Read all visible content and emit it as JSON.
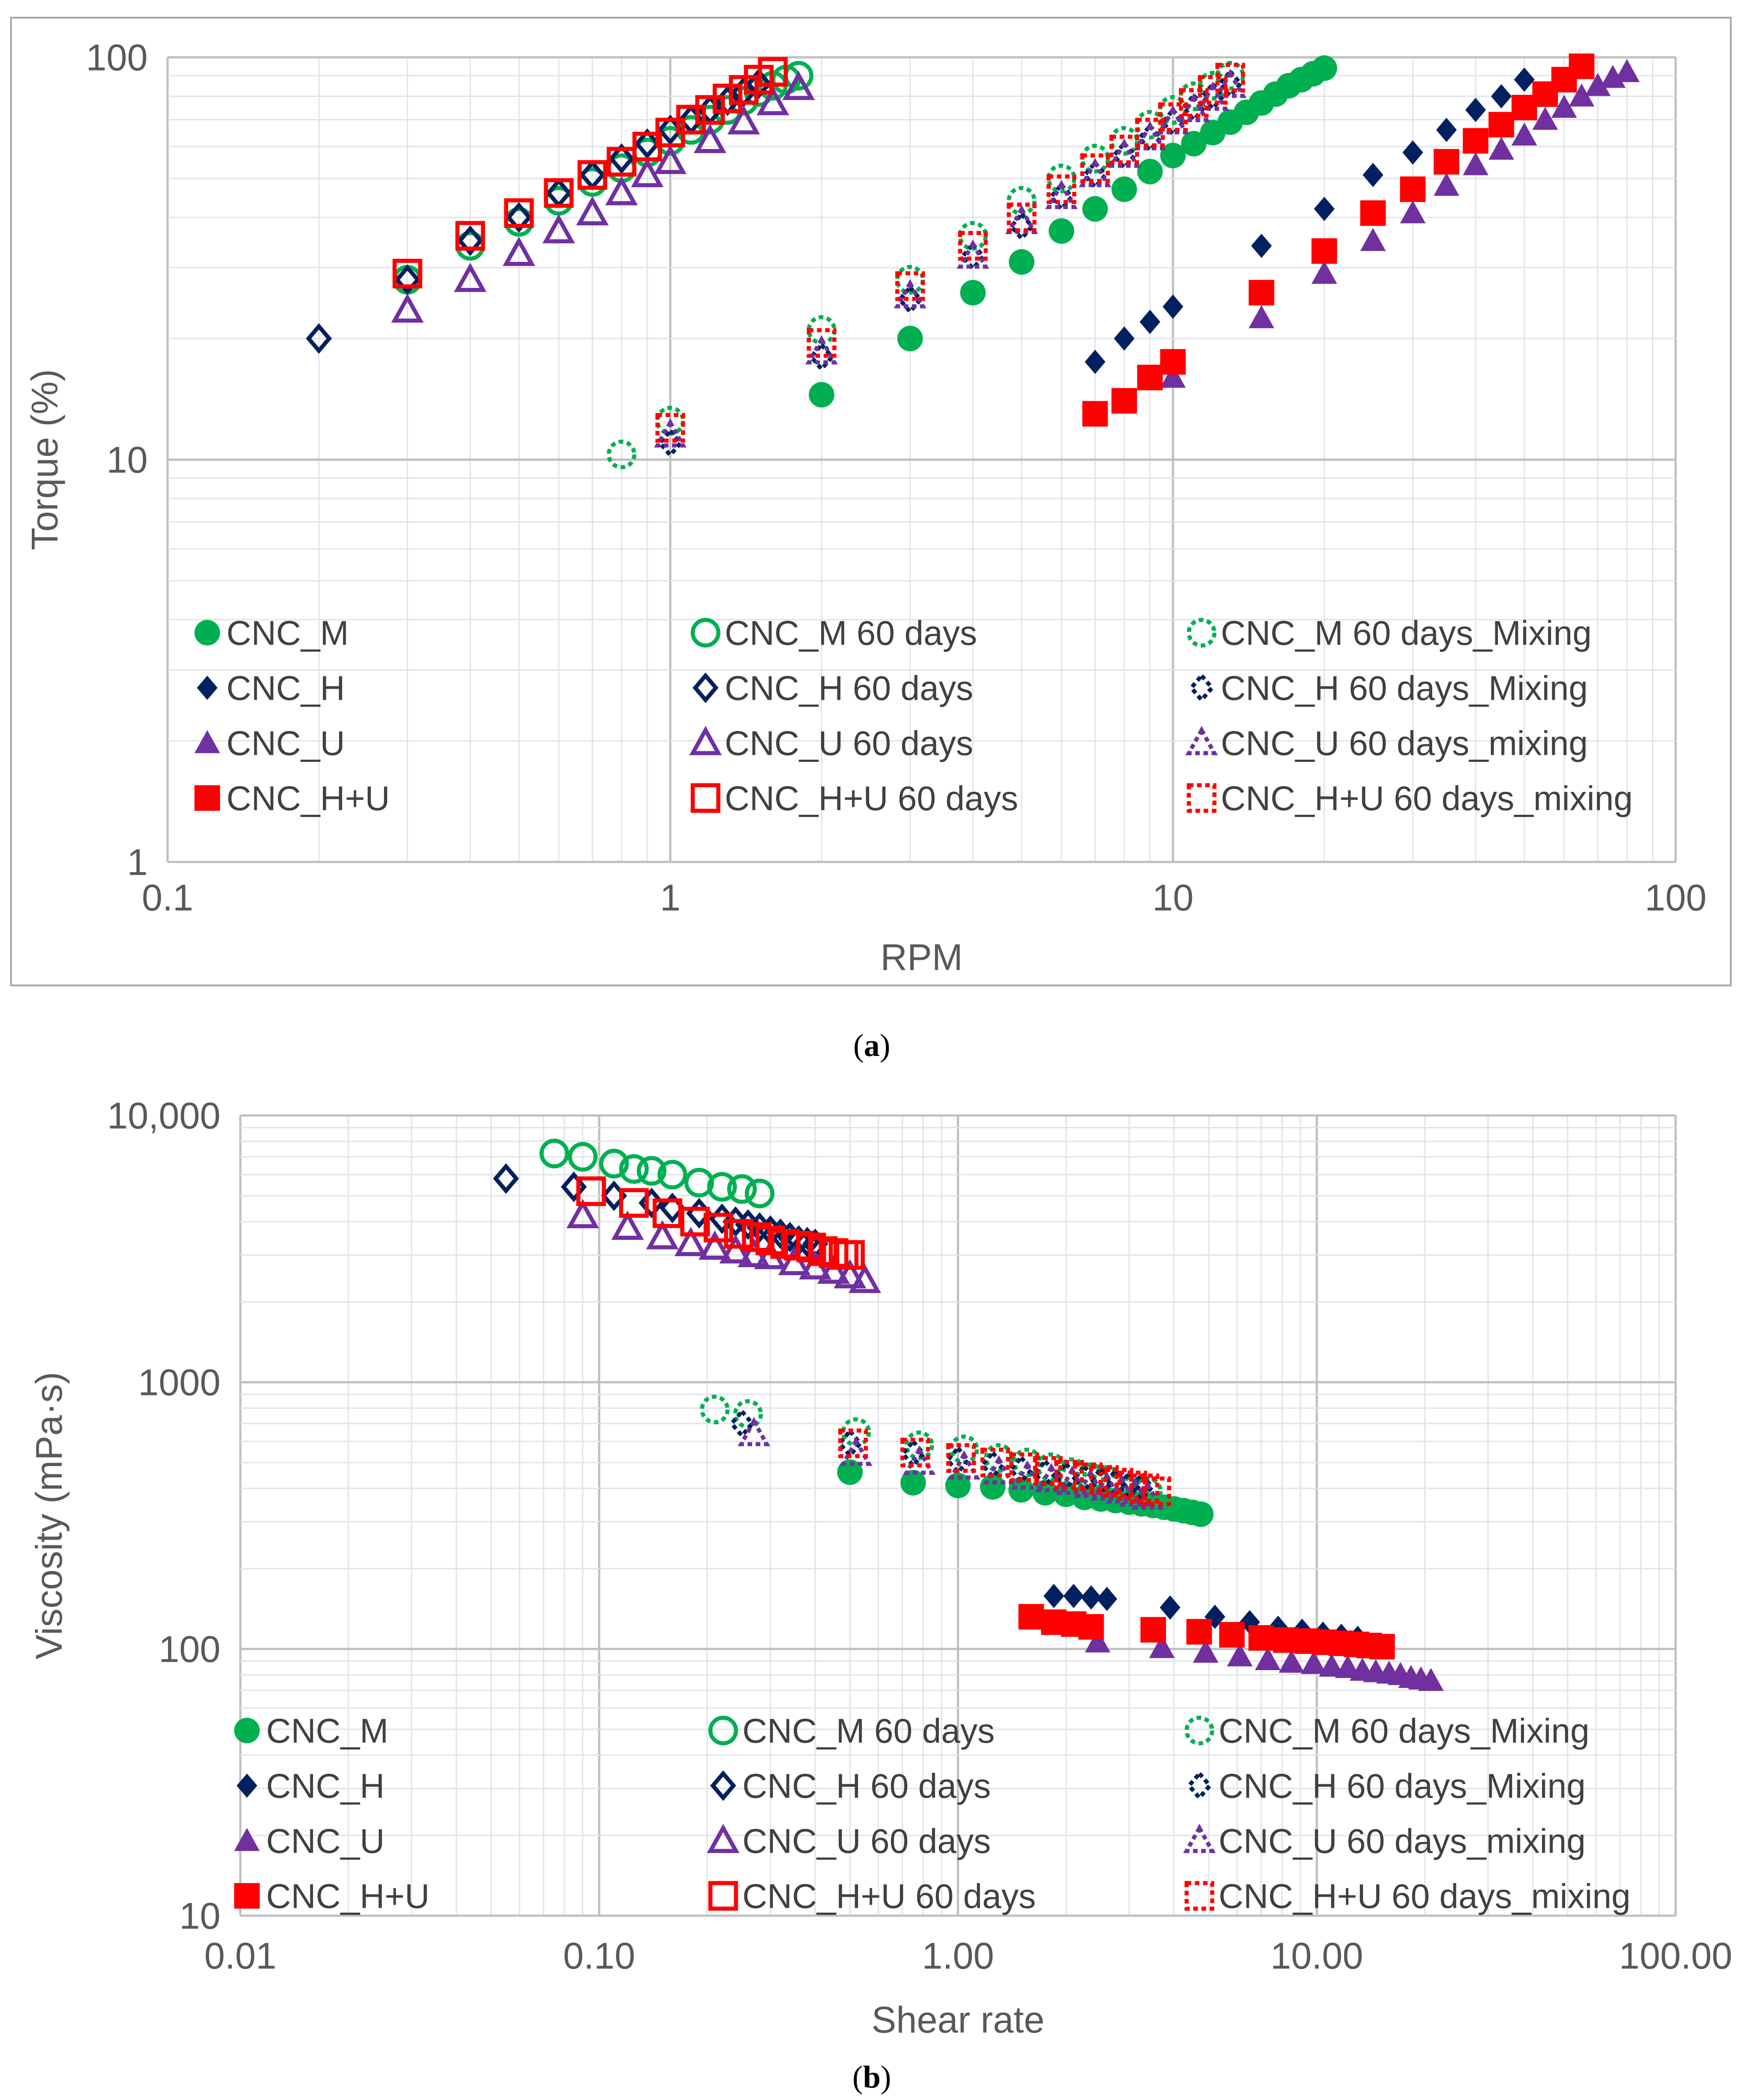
{
  "chart_data": [
    {
      "type": "scatter",
      "caption": "a",
      "xlabel": "RPM",
      "ylabel": "Torque (%)",
      "xscale": "log",
      "yscale": "log",
      "xlim": [
        0.1,
        100
      ],
      "ylim": [
        1,
        100
      ],
      "xticks": [
        {
          "v": 0.1,
          "label": "0.1"
        },
        {
          "v": 1,
          "label": "1"
        },
        {
          "v": 10,
          "label": "10"
        },
        {
          "v": 100,
          "label": "100"
        }
      ],
      "yticks": [
        {
          "v": 1,
          "label": "1"
        },
        {
          "v": 10,
          "label": "10"
        },
        {
          "v": 100,
          "label": "100"
        }
      ],
      "grid": true,
      "legend_position": "bottom-inside",
      "series": [
        {
          "name": "CNC_M",
          "marker": "circle",
          "style": "filled",
          "color": "#00B050",
          "x": [
            2,
            3,
            4,
            5,
            6,
            7,
            8,
            9,
            10,
            11,
            12,
            13,
            14,
            15,
            16,
            17,
            18,
            19,
            20
          ],
          "y": [
            14.5,
            20,
            26,
            31,
            37,
            42,
            47,
            52,
            57,
            61,
            65,
            69,
            73,
            77,
            81,
            85,
            88,
            91,
            94
          ]
        },
        {
          "name": "CNC_H",
          "marker": "diamond",
          "style": "filled",
          "color": "#002060",
          "x": [
            7,
            8,
            9,
            10,
            15,
            20,
            25,
            30,
            35,
            40,
            45,
            50
          ],
          "y": [
            17.5,
            20,
            22,
            24,
            34,
            42,
            51,
            58,
            66,
            74,
            80,
            88
          ]
        },
        {
          "name": "CNC_U",
          "marker": "triangle",
          "style": "filled",
          "color": "#7030A0",
          "x": [
            10,
            15,
            20,
            25,
            30,
            35,
            40,
            45,
            50,
            55,
            60,
            65,
            70,
            75,
            80
          ],
          "y": [
            16,
            22.5,
            29,
            35,
            41,
            48,
            54,
            59,
            64,
            70,
            75,
            80,
            85,
            89,
            92
          ]
        },
        {
          "name": "CNC_H+U",
          "marker": "square",
          "style": "filled",
          "color": "#FF0000",
          "x": [
            7,
            8,
            9,
            10,
            15,
            20,
            25,
            30,
            35,
            40,
            45,
            50,
            55,
            60,
            65
          ],
          "y": [
            13,
            14,
            16,
            17.5,
            26,
            33,
            41,
            47,
            55,
            62,
            68,
            75,
            81,
            88,
            95
          ]
        },
        {
          "name": "CNC_M 60 days",
          "marker": "circle",
          "style": "open",
          "color": "#00B050",
          "x": [
            0.3,
            0.4,
            0.5,
            0.6,
            0.7,
            0.8,
            0.9,
            1,
            1.1,
            1.2,
            1.3,
            1.4,
            1.5,
            1.6,
            1.7,
            1.8
          ],
          "y": [
            28,
            34,
            39,
            44,
            49,
            53,
            58,
            62,
            66,
            70,
            74,
            78,
            82,
            85,
            88,
            90
          ]
        },
        {
          "name": "CNC_H 60 days",
          "marker": "diamond",
          "style": "open",
          "color": "#002060",
          "x": [
            0.2,
            0.3,
            0.4,
            0.5,
            0.6,
            0.7,
            0.8,
            0.9,
            1,
            1.1,
            1.2,
            1.3,
            1.4,
            1.5
          ],
          "y": [
            20,
            28,
            35,
            40,
            46,
            51,
            56,
            61,
            66,
            70,
            74,
            78,
            82,
            86
          ]
        },
        {
          "name": "CNC_U 60 days",
          "marker": "triangle",
          "style": "open",
          "color": "#7030A0",
          "x": [
            0.3,
            0.4,
            0.5,
            0.6,
            0.7,
            0.8,
            0.9,
            1,
            1.2,
            1.4,
            1.6,
            1.8
          ],
          "y": [
            23.5,
            28,
            32.5,
            37,
            41,
            46,
            51,
            55,
            62,
            69,
            77,
            84
          ]
        },
        {
          "name": "CNC_H+U 60 days",
          "marker": "square",
          "style": "open",
          "color": "#FF0000",
          "x": [
            0.3,
            0.4,
            0.5,
            0.6,
            0.7,
            0.8,
            0.9,
            1,
            1.1,
            1.2,
            1.3,
            1.4,
            1.5,
            1.6
          ],
          "y": [
            29,
            36,
            41,
            46,
            51,
            55,
            60,
            65,
            70,
            74,
            79,
            83,
            88,
            92
          ]
        },
        {
          "name": "CNC_M 60 days_Mixing",
          "marker": "circle",
          "style": "dashed",
          "color": "#00B050",
          "x": [
            0.8,
            1,
            2,
            3,
            4,
            5,
            6,
            7,
            8,
            9,
            10,
            11,
            12,
            13
          ],
          "y": [
            10.3,
            12.5,
            21,
            28,
            36,
            44,
            50,
            56,
            62,
            68,
            74,
            80,
            85,
            90
          ]
        },
        {
          "name": "CNC_H 60 days_Mixing",
          "marker": "diamond",
          "style": "dashed",
          "color": "#002060",
          "x": [
            1,
            2,
            3,
            4,
            5,
            6,
            7,
            8,
            9,
            10,
            11,
            12,
            13
          ],
          "y": [
            11,
            18,
            25,
            32,
            38,
            45,
            51,
            57,
            63,
            69,
            75,
            80,
            86
          ]
        },
        {
          "name": "CNC_U 60 days_mixing",
          "marker": "triangle",
          "style": "dashed",
          "color": "#7030A0",
          "x": [
            1,
            2,
            3,
            4,
            5,
            6,
            7,
            8,
            9,
            10,
            11,
            12,
            13
          ],
          "y": [
            11.5,
            18.5,
            25.5,
            32,
            39,
            45,
            51,
            57,
            63,
            69,
            74,
            79,
            85
          ]
        },
        {
          "name": "CNC_H+U 60 days_mixing",
          "marker": "square",
          "style": "dashed",
          "color": "#FF0000",
          "x": [
            1,
            2,
            3,
            4,
            5,
            6,
            7,
            8,
            9,
            10,
            11,
            12,
            13
          ],
          "y": [
            12,
            19.5,
            27,
            34,
            40,
            47,
            53,
            59,
            65,
            71,
            77,
            83,
            89
          ]
        }
      ]
    },
    {
      "type": "scatter",
      "caption": "b",
      "xlabel": "Shear rate",
      "ylabel": "Viscosity (mPa·s)",
      "xscale": "log",
      "yscale": "log",
      "xlim": [
        0.01,
        100
      ],
      "ylim": [
        10,
        10000
      ],
      "xticks": [
        {
          "v": 0.01,
          "label": "0.01"
        },
        {
          "v": 0.1,
          "label": "0.10"
        },
        {
          "v": 1,
          "label": "1.00"
        },
        {
          "v": 10,
          "label": "10.00"
        },
        {
          "v": 100,
          "label": "100.00"
        }
      ],
      "yticks": [
        {
          "v": 10,
          "label": "10"
        },
        {
          "v": 100,
          "label": "100"
        },
        {
          "v": 1000,
          "label": "1000"
        },
        {
          "v": 10000,
          "label": "10,000"
        }
      ],
      "grid": true,
      "legend_position": "bottom-inside",
      "series": [
        {
          "name": "CNC_M",
          "marker": "circle",
          "style": "filled",
          "color": "#00B050",
          "x": [
            0.5,
            0.75,
            1,
            1.25,
            1.5,
            1.75,
            2,
            2.25,
            2.5,
            2.75,
            3,
            3.25,
            3.5,
            3.75,
            4,
            4.25,
            4.5,
            4.75
          ],
          "y": [
            460,
            420,
            410,
            405,
            395,
            385,
            380,
            370,
            365,
            360,
            355,
            350,
            345,
            340,
            335,
            330,
            325,
            320
          ]
        },
        {
          "name": "CNC_H",
          "marker": "diamond",
          "style": "filled",
          "color": "#002060",
          "x": [
            1.85,
            2.1,
            2.35,
            2.6,
            3.9,
            5.2,
            6.5,
            7.8,
            9.1,
            10.4,
            11.7,
            13
          ],
          "y": [
            158,
            158,
            156,
            154,
            143,
            132,
            126,
            120,
            117,
            114,
            112,
            110
          ]
        },
        {
          "name": "CNC_U",
          "marker": "triangle",
          "style": "filled",
          "color": "#7030A0",
          "x": [
            2.45,
            3.7,
            4.9,
            6.1,
            7.3,
            8.5,
            9.8,
            11,
            12.2,
            13.4,
            14.6,
            15.9,
            17.1,
            18.3,
            19.5,
            20.8
          ],
          "y": [
            106,
            101,
            97,
            94,
            91,
            89,
            88,
            86,
            85,
            83,
            82,
            81,
            80,
            78,
            77,
            76
          ]
        },
        {
          "name": "CNC_H+U",
          "marker": "square",
          "style": "filled",
          "color": "#FF0000",
          "x": [
            1.6,
            1.85,
            2.1,
            2.35,
            3.5,
            4.7,
            5.8,
            7,
            8.2,
            9.4,
            10.5,
            11.7,
            12.9,
            14,
            15.2
          ],
          "y": [
            132,
            126,
            124,
            121,
            118,
            116,
            113,
            110,
            108,
            107,
            106,
            105,
            104,
            103,
            102
          ]
        },
        {
          "name": "CNC_M 60 days",
          "marker": "circle",
          "style": "open",
          "color": "#00B050",
          "x": [
            0.075,
            0.09,
            0.11,
            0.125,
            0.14,
            0.16,
            0.19,
            0.22,
            0.25,
            0.28
          ],
          "y": [
            7200,
            7000,
            6600,
            6300,
            6200,
            6000,
            5600,
            5400,
            5300,
            5100
          ]
        },
        {
          "name": "CNC_H 60 days",
          "marker": "diamond",
          "style": "open",
          "color": "#002060",
          "x": [
            0.055,
            0.085,
            0.11,
            0.14,
            0.16,
            0.19,
            0.22,
            0.24,
            0.26,
            0.28,
            0.3,
            0.32,
            0.34,
            0.36,
            0.38,
            0.4
          ],
          "y": [
            5800,
            5400,
            5000,
            4700,
            4500,
            4300,
            4100,
            4000,
            3900,
            3800,
            3700,
            3600,
            3500,
            3400,
            3350,
            3300
          ]
        },
        {
          "name": "CNC_U 60 days",
          "marker": "triangle",
          "style": "open",
          "color": "#7030A0",
          "x": [
            0.09,
            0.12,
            0.15,
            0.18,
            0.21,
            0.24,
            0.27,
            0.3,
            0.35,
            0.4,
            0.45,
            0.5,
            0.55
          ],
          "y": [
            4200,
            3800,
            3500,
            3300,
            3200,
            3100,
            3000,
            2950,
            2800,
            2700,
            2600,
            2500,
            2400
          ]
        },
        {
          "name": "CNC_H+U 60 days",
          "marker": "square",
          "style": "open",
          "color": "#FF0000",
          "x": [
            0.095,
            0.125,
            0.155,
            0.185,
            0.215,
            0.245,
            0.275,
            0.3,
            0.33,
            0.36,
            0.39,
            0.42,
            0.45,
            0.48,
            0.5
          ],
          "y": [
            5200,
            4700,
            4300,
            4000,
            3800,
            3600,
            3500,
            3400,
            3300,
            3250,
            3200,
            3100,
            3050,
            3000,
            3000
          ]
        },
        {
          "name": "CNC_M 60 days_Mixing",
          "marker": "circle",
          "style": "dashed",
          "color": "#00B050",
          "x": [
            0.21,
            0.26,
            0.52,
            0.78,
            1.04,
            1.3,
            1.56,
            1.82,
            2.08,
            2.34,
            2.6,
            2.86,
            3.12,
            3.38
          ],
          "y": [
            790,
            760,
            650,
            580,
            560,
            520,
            500,
            480,
            460,
            440,
            430,
            410,
            400,
            390
          ]
        },
        {
          "name": "CNC_H 60 days_Mixing",
          "marker": "diamond",
          "style": "dashed",
          "color": "#002060",
          "x": [
            0.25,
            0.5,
            0.75,
            1,
            1.25,
            1.5,
            1.75,
            2,
            2.25,
            2.5,
            2.75,
            3,
            3.25
          ],
          "y": [
            700,
            590,
            540,
            510,
            490,
            470,
            455,
            445,
            435,
            425,
            420,
            410,
            405
          ]
        },
        {
          "name": "CNC_U 60 days_mixing",
          "marker": "triangle",
          "style": "dashed",
          "color": "#7030A0",
          "x": [
            0.27,
            0.52,
            0.78,
            1.04,
            1.3,
            1.56,
            1.82,
            2.08,
            2.34,
            2.6,
            2.86,
            3.12,
            3.38
          ],
          "y": [
            640,
            540,
            500,
            480,
            460,
            440,
            430,
            420,
            410,
            400,
            390,
            380,
            370
          ]
        },
        {
          "name": "CNC_H+U 60 days_mixing",
          "marker": "square",
          "style": "dashed",
          "color": "#FF0000",
          "x": [
            0.51,
            0.76,
            1.02,
            1.27,
            1.53,
            1.78,
            2.04,
            2.3,
            2.55,
            2.8,
            3.06,
            3.31,
            3.57
          ],
          "y": [
            590,
            545,
            520,
            500,
            480,
            465,
            450,
            440,
            430,
            420,
            410,
            400,
            390
          ]
        }
      ]
    }
  ]
}
